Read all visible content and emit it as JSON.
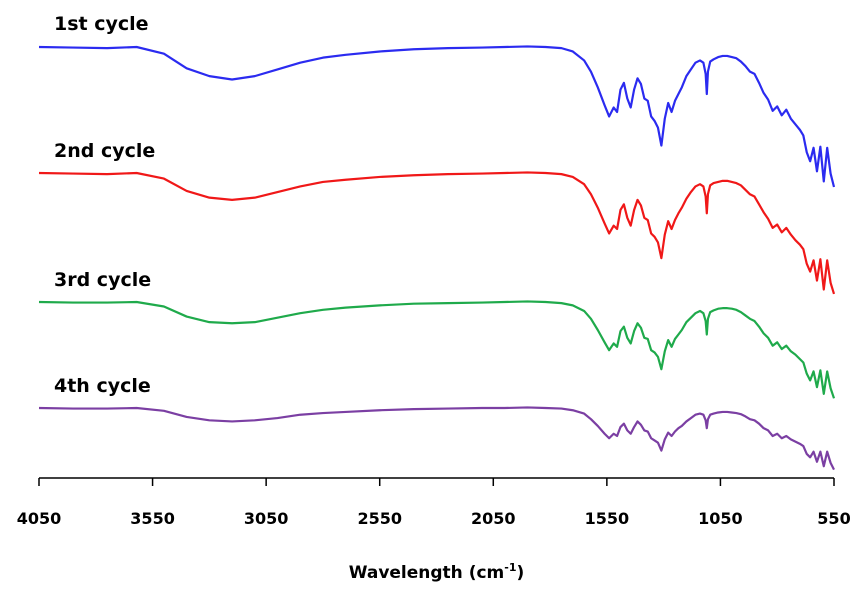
{
  "chart_data": {
    "type": "line",
    "title": "",
    "xlabel": {
      "prefix": "Wavelength (cm",
      "sup": "-1",
      "suffix": ")"
    },
    "ylabel": "",
    "xlim": [
      4050,
      550
    ],
    "x_reversed": true,
    "grid": false,
    "y_axis_visible": false,
    "xticks": [
      4050,
      3550,
      3050,
      2550,
      2050,
      1550,
      1050,
      550
    ],
    "series": [
      {
        "name": "1st cycle",
        "color": "#2b2bf0",
        "x": [
          4050,
          3900,
          3750,
          3620,
          3500,
          3400,
          3300,
          3200,
          3100,
          3000,
          2900,
          2800,
          2700,
          2550,
          2400,
          2250,
          2100,
          2000,
          1900,
          1820,
          1750,
          1700,
          1650,
          1620,
          1590,
          1560,
          1540,
          1520,
          1505,
          1490,
          1475,
          1460,
          1445,
          1430,
          1415,
          1400,
          1385,
          1370,
          1355,
          1340,
          1325,
          1310,
          1295,
          1280,
          1265,
          1250,
          1235,
          1220,
          1200,
          1180,
          1160,
          1140,
          1125,
          1115,
          1110,
          1105,
          1095,
          1080,
          1060,
          1040,
          1020,
          1000,
          980,
          960,
          940,
          920,
          900,
          880,
          860,
          840,
          820,
          800,
          780,
          760,
          740,
          720,
          700,
          685,
          670,
          655,
          640,
          625,
          610,
          595,
          580,
          565,
          550
        ],
        "y": [
          0.0,
          -0.05,
          -0.1,
          0.0,
          -0.6,
          -1.9,
          -2.6,
          -2.9,
          -2.6,
          -2.0,
          -1.4,
          -0.95,
          -0.7,
          -0.4,
          -0.2,
          -0.1,
          -0.05,
          0.0,
          0.05,
          0.0,
          -0.1,
          -0.4,
          -1.2,
          -2.2,
          -3.6,
          -5.2,
          -6.2,
          -5.4,
          -5.8,
          -3.8,
          -3.2,
          -4.6,
          -5.4,
          -3.8,
          -2.8,
          -3.3,
          -4.6,
          -4.8,
          -6.2,
          -6.6,
          -7.2,
          -8.8,
          -6.4,
          -5.0,
          -5.8,
          -4.8,
          -4.2,
          -3.6,
          -2.6,
          -2.0,
          -1.4,
          -1.2,
          -1.4,
          -2.4,
          -4.2,
          -2.2,
          -1.3,
          -1.1,
          -0.9,
          -0.8,
          -0.8,
          -0.9,
          -1.0,
          -1.3,
          -1.7,
          -2.2,
          -2.4,
          -3.2,
          -4.1,
          -4.7,
          -5.7,
          -5.3,
          -6.1,
          -5.6,
          -6.4,
          -6.9,
          -7.4,
          -7.9,
          -9.4,
          -10.2,
          -9.0,
          -11.1,
          -8.9,
          -12.0,
          -9.0,
          -11.3,
          -12.5
        ]
      },
      {
        "name": "2nd cycle",
        "color": "#f01818",
        "x": [
          4050,
          3900,
          3750,
          3620,
          3500,
          3400,
          3300,
          3200,
          3100,
          3000,
          2900,
          2800,
          2700,
          2550,
          2400,
          2250,
          2100,
          2000,
          1900,
          1820,
          1750,
          1700,
          1650,
          1620,
          1590,
          1560,
          1540,
          1520,
          1505,
          1490,
          1475,
          1460,
          1445,
          1430,
          1415,
          1400,
          1385,
          1370,
          1355,
          1340,
          1325,
          1310,
          1295,
          1280,
          1265,
          1250,
          1235,
          1220,
          1200,
          1180,
          1160,
          1140,
          1125,
          1115,
          1110,
          1105,
          1095,
          1080,
          1060,
          1040,
          1020,
          1000,
          980,
          960,
          940,
          920,
          900,
          880,
          860,
          840,
          820,
          800,
          780,
          760,
          740,
          720,
          700,
          685,
          670,
          655,
          640,
          625,
          610,
          595,
          580,
          565,
          550
        ],
        "y": [
          0.0,
          -0.05,
          -0.1,
          0.0,
          -0.5,
          -1.6,
          -2.2,
          -2.4,
          -2.2,
          -1.7,
          -1.2,
          -0.8,
          -0.6,
          -0.35,
          -0.2,
          -0.1,
          -0.05,
          0.0,
          0.05,
          0.0,
          -0.1,
          -0.35,
          -1.0,
          -1.9,
          -3.1,
          -4.5,
          -5.4,
          -4.7,
          -5.0,
          -3.3,
          -2.8,
          -4.0,
          -4.7,
          -3.3,
          -2.4,
          -2.9,
          -4.0,
          -4.2,
          -5.4,
          -5.7,
          -6.2,
          -7.6,
          -5.5,
          -4.3,
          -5.0,
          -4.2,
          -3.6,
          -3.1,
          -2.3,
          -1.7,
          -1.2,
          -1.0,
          -1.2,
          -2.1,
          -3.6,
          -1.9,
          -1.1,
          -0.9,
          -0.8,
          -0.7,
          -0.7,
          -0.8,
          -0.9,
          -1.1,
          -1.5,
          -1.9,
          -2.1,
          -2.8,
          -3.5,
          -4.1,
          -4.9,
          -4.6,
          -5.3,
          -4.9,
          -5.5,
          -6.0,
          -6.4,
          -6.8,
          -8.1,
          -8.8,
          -7.8,
          -9.6,
          -7.7,
          -10.4,
          -7.8,
          -9.8,
          -10.8
        ]
      },
      {
        "name": "3rd cycle",
        "color": "#1faa4b",
        "x": [
          4050,
          3900,
          3750,
          3620,
          3500,
          3400,
          3300,
          3200,
          3100,
          3000,
          2900,
          2800,
          2700,
          2550,
          2400,
          2250,
          2100,
          2000,
          1900,
          1820,
          1750,
          1700,
          1650,
          1620,
          1590,
          1560,
          1540,
          1520,
          1505,
          1490,
          1475,
          1460,
          1445,
          1430,
          1415,
          1400,
          1385,
          1370,
          1355,
          1340,
          1325,
          1310,
          1295,
          1280,
          1265,
          1250,
          1235,
          1220,
          1200,
          1180,
          1160,
          1140,
          1125,
          1115,
          1110,
          1105,
          1095,
          1080,
          1060,
          1040,
          1020,
          1000,
          980,
          960,
          940,
          920,
          900,
          880,
          860,
          840,
          820,
          800,
          780,
          760,
          740,
          720,
          700,
          685,
          670,
          655,
          640,
          625,
          610,
          595,
          580,
          565,
          550
        ],
        "y": [
          0.0,
          -0.05,
          -0.05,
          0.0,
          -0.4,
          -1.3,
          -1.8,
          -1.9,
          -1.8,
          -1.4,
          -1.0,
          -0.7,
          -0.5,
          -0.3,
          -0.15,
          -0.1,
          -0.05,
          0.0,
          0.05,
          0.0,
          -0.1,
          -0.3,
          -0.8,
          -1.5,
          -2.5,
          -3.6,
          -4.3,
          -3.7,
          -4.0,
          -2.6,
          -2.2,
          -3.2,
          -3.7,
          -2.6,
          -1.9,
          -2.3,
          -3.2,
          -3.3,
          -4.3,
          -4.5,
          -4.9,
          -6.0,
          -4.4,
          -3.4,
          -4.0,
          -3.3,
          -2.9,
          -2.5,
          -1.8,
          -1.4,
          -1.0,
          -0.8,
          -1.0,
          -1.7,
          -2.9,
          -1.5,
          -0.9,
          -0.75,
          -0.6,
          -0.55,
          -0.55,
          -0.6,
          -0.7,
          -0.9,
          -1.2,
          -1.5,
          -1.7,
          -2.2,
          -2.8,
          -3.2,
          -3.9,
          -3.6,
          -4.2,
          -3.9,
          -4.4,
          -4.7,
          -5.1,
          -5.4,
          -6.4,
          -7.0,
          -6.2,
          -7.6,
          -6.1,
          -8.2,
          -6.2,
          -7.7,
          -8.6
        ]
      },
      {
        "name": "4th cycle",
        "color": "#7b3fa3",
        "x": [
          4050,
          3900,
          3750,
          3620,
          3500,
          3400,
          3300,
          3200,
          3100,
          3000,
          2900,
          2800,
          2700,
          2550,
          2400,
          2250,
          2100,
          2000,
          1900,
          1820,
          1750,
          1700,
          1650,
          1620,
          1590,
          1560,
          1540,
          1520,
          1505,
          1490,
          1475,
          1460,
          1445,
          1430,
          1415,
          1400,
          1385,
          1370,
          1355,
          1340,
          1325,
          1310,
          1295,
          1280,
          1265,
          1250,
          1235,
          1220,
          1200,
          1180,
          1160,
          1140,
          1125,
          1115,
          1110,
          1105,
          1095,
          1080,
          1060,
          1040,
          1020,
          1000,
          980,
          960,
          940,
          920,
          900,
          880,
          860,
          840,
          820,
          800,
          780,
          760,
          740,
          720,
          700,
          685,
          670,
          655,
          640,
          625,
          610,
          595,
          580,
          565,
          550
        ],
        "y": [
          0.0,
          -0.05,
          -0.05,
          0.0,
          -0.25,
          -0.8,
          -1.1,
          -1.2,
          -1.1,
          -0.9,
          -0.6,
          -0.45,
          -0.35,
          -0.2,
          -0.1,
          -0.05,
          0.0,
          0.0,
          0.05,
          0.0,
          -0.05,
          -0.2,
          -0.5,
          -1.0,
          -1.6,
          -2.3,
          -2.7,
          -2.3,
          -2.5,
          -1.7,
          -1.4,
          -2.0,
          -2.3,
          -1.7,
          -1.2,
          -1.5,
          -2.0,
          -2.1,
          -2.7,
          -2.9,
          -3.1,
          -3.8,
          -2.8,
          -2.2,
          -2.5,
          -2.1,
          -1.8,
          -1.6,
          -1.2,
          -0.9,
          -0.6,
          -0.5,
          -0.6,
          -1.1,
          -1.8,
          -1.0,
          -0.6,
          -0.5,
          -0.4,
          -0.35,
          -0.35,
          -0.4,
          -0.45,
          -0.55,
          -0.75,
          -1.0,
          -1.1,
          -1.4,
          -1.8,
          -2.0,
          -2.5,
          -2.3,
          -2.7,
          -2.5,
          -2.8,
          -3.0,
          -3.2,
          -3.4,
          -4.1,
          -4.4,
          -3.9,
          -4.8,
          -3.9,
          -5.2,
          -3.9,
          -4.9,
          -5.5
        ]
      }
    ]
  }
}
